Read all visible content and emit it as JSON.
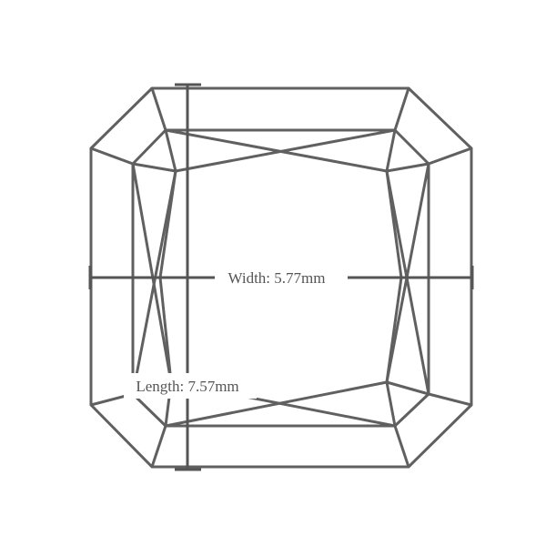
{
  "diagram": {
    "shape": "radiant-cut gemstone outline",
    "width_label": "Width: 5.77mm",
    "length_label": "Length: 7.57mm",
    "colors": {
      "line": "#606060",
      "dimension": "#555555",
      "background": "#ffffff"
    }
  }
}
